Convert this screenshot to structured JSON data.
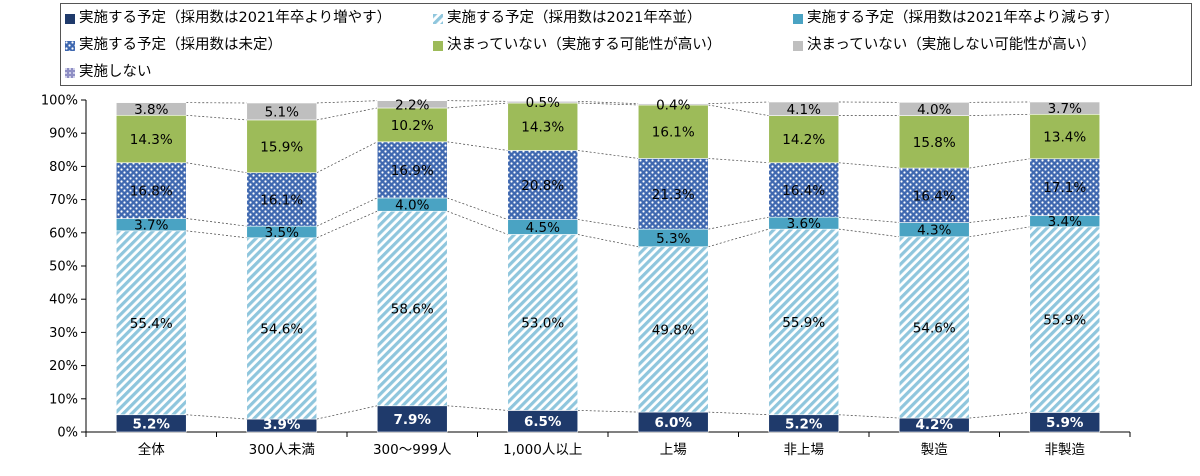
{
  "chart_data": {
    "type": "bar",
    "stacked": true,
    "categories": [
      "全体",
      "300人未満",
      "300～999人",
      "1,000人以上",
      "上場",
      "非上場",
      "製造",
      "非製造"
    ],
    "ylim": [
      0,
      100
    ],
    "yticks": [
      "0%",
      "10%",
      "20%",
      "30%",
      "40%",
      "50%",
      "60%",
      "70%",
      "80%",
      "90%",
      "100%"
    ],
    "legend_position": "top",
    "series": [
      {
        "name": "実施する予定（採用数は2021年卒より増やす）",
        "color": "#1f3a6b",
        "pattern": "solid",
        "values": [
          5.2,
          3.9,
          7.9,
          6.5,
          6.0,
          5.2,
          4.2,
          5.9
        ],
        "labels": [
          "5.2%",
          "3.9%",
          "7.9%",
          "6.5%",
          "6.0%",
          "5.2%",
          "4.2%",
          "5.9%"
        ]
      },
      {
        "name": "実施する予定（採用数は2021年卒並）",
        "color": "#9fcde0",
        "pattern": "diagonal",
        "values": [
          55.4,
          54.6,
          58.6,
          53.0,
          49.8,
          55.9,
          54.6,
          55.9
        ],
        "labels": [
          "55.4%",
          "54.6%",
          "58.6%",
          "53.0%",
          "49.8%",
          "55.9%",
          "54.6%",
          "55.9%"
        ]
      },
      {
        "name": "実施する予定（採用数は2021年卒より減らす）",
        "color": "#4aa3c3",
        "pattern": "solid",
        "values": [
          3.7,
          3.5,
          4.0,
          4.5,
          5.3,
          3.6,
          4.3,
          3.4
        ],
        "labels": [
          "3.7%",
          "3.5%",
          "4.0%",
          "4.5%",
          "5.3%",
          "3.6%",
          "4.3%",
          "3.4%"
        ]
      },
      {
        "name": "実施する予定（採用数は未定）",
        "color": "#4a72b8",
        "pattern": "dots",
        "values": [
          16.8,
          16.1,
          16.9,
          20.8,
          21.3,
          16.4,
          16.4,
          17.1
        ],
        "labels": [
          "16.8%",
          "16.1%",
          "16.9%",
          "20.8%",
          "21.3%",
          "16.4%",
          "16.4%",
          "17.1%"
        ]
      },
      {
        "name": "決まっていない（実施する可能性が高い）",
        "color": "#9dbb59",
        "pattern": "solid",
        "values": [
          14.3,
          15.9,
          10.2,
          14.3,
          16.1,
          14.2,
          15.8,
          13.4
        ],
        "labels": [
          "14.3%",
          "15.9%",
          "10.2%",
          "14.3%",
          "16.1%",
          "14.2%",
          "15.8%",
          "13.4%"
        ]
      },
      {
        "name": "決まっていない（実施しない可能性が高い）",
        "color": "#bfbfbf",
        "pattern": "solid",
        "values": [
          3.8,
          5.1,
          2.2,
          0.5,
          0.4,
          4.1,
          4.0,
          3.7
        ],
        "labels": [
          "3.8%",
          "5.1%",
          "2.2%",
          "0.5%",
          "0.4%",
          "4.1%",
          "4.0%",
          "3.7%"
        ]
      },
      {
        "name": "実施しない",
        "color": "#8e8ec4",
        "pattern": "grid",
        "values": [
          0,
          0,
          0,
          0,
          0,
          0,
          0,
          0
        ],
        "labels": [
          "",
          "",
          "",
          "",
          "",
          "",
          "",
          ""
        ]
      }
    ]
  }
}
